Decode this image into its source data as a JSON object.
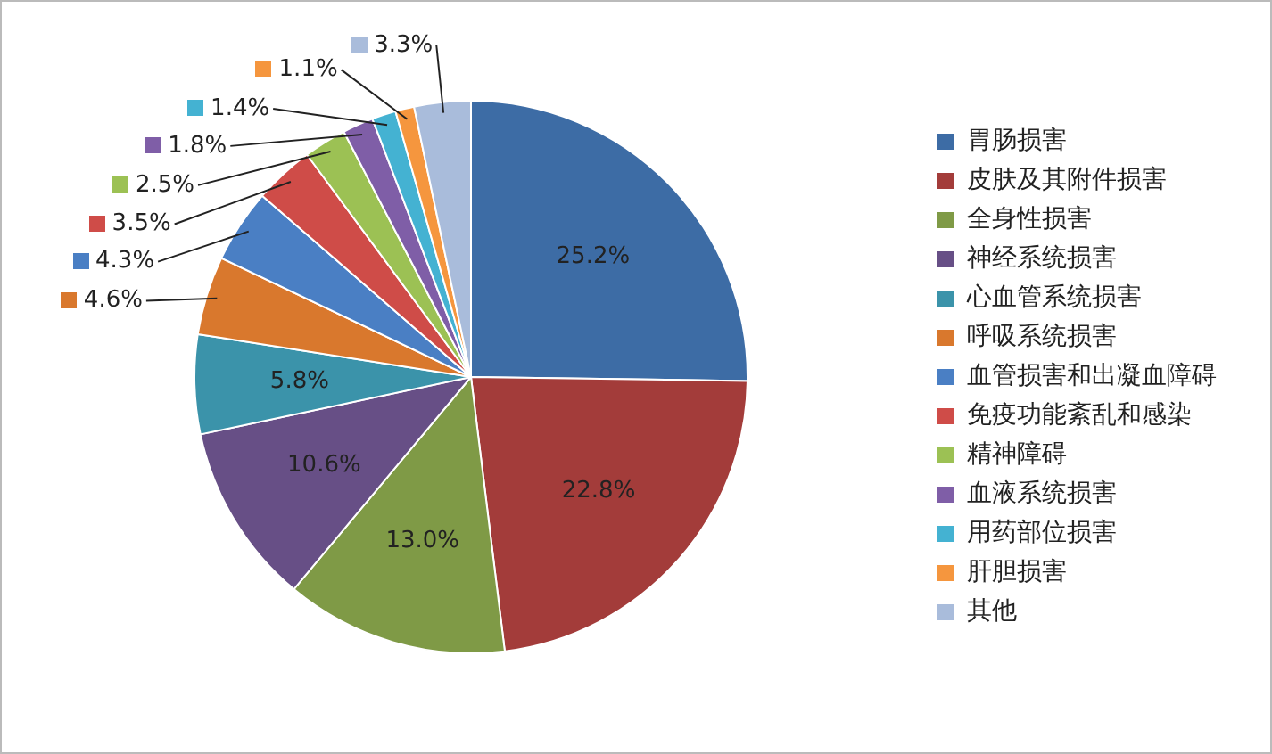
{
  "chart_data": {
    "type": "pie",
    "categories": [
      "胃肠损害",
      "皮肤及其附件损害",
      "全身性损害",
      "神经系统损害",
      "心血管系统损害",
      "呼吸系统损害",
      "血管损害和出凝血障碍",
      "免疫功能紊乱和感染",
      "精神障碍",
      "血液系统损害",
      "用药部位损害",
      "肝胆损害",
      "其他"
    ],
    "values": [
      25.2,
      22.8,
      13.0,
      10.6,
      5.8,
      4.6,
      4.3,
      3.5,
      2.5,
      1.8,
      1.4,
      1.1,
      3.3
    ],
    "value_labels": [
      "25.2%",
      "22.8%",
      "13.0%",
      "10.6%",
      "5.8%",
      "4.6%",
      "4.3%",
      "3.5%",
      "2.5%",
      "1.8%",
      "1.4%",
      "1.1%",
      "3.3%"
    ],
    "colors": [
      "#3d6ca5",
      "#a33c3a",
      "#7f9a46",
      "#674f86",
      "#3b93aa",
      "#d9782d",
      "#4a7fc4",
      "#cf4c48",
      "#9cc154",
      "#7f5ea7",
      "#44b2d2",
      "#f5963e",
      "#a9bcdb"
    ],
    "legend": "right"
  }
}
